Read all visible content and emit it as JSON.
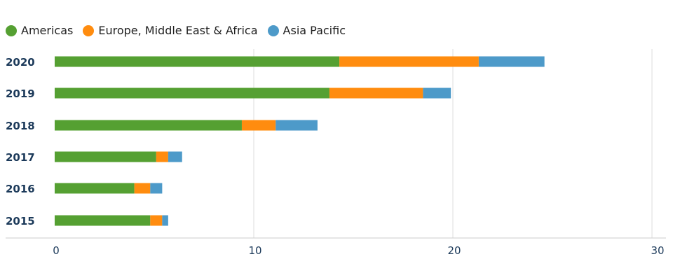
{
  "chart_data": {
    "type": "bar",
    "orientation": "horizontal",
    "stacked": true,
    "categories": [
      "2020",
      "2019",
      "2018",
      "2017",
      "2016",
      "2015"
    ],
    "series": [
      {
        "name": "Americas",
        "color": "#55a032",
        "values": [
          14.3,
          13.8,
          9.4,
          5.1,
          4.0,
          4.8
        ]
      },
      {
        "name": "Europe, Middle East & Africa",
        "color": "#ff8c0f",
        "values": [
          7.0,
          4.7,
          1.7,
          0.6,
          0.8,
          0.6
        ]
      },
      {
        "name": "Asia Pacific",
        "color": "#4d9ac9",
        "values": [
          3.3,
          1.4,
          2.1,
          0.7,
          0.6,
          0.3
        ]
      }
    ],
    "xlim": [
      0,
      30
    ],
    "xticks": [
      "0",
      "10",
      "20",
      "30"
    ],
    "grid": true,
    "legend_position": "top-left"
  }
}
